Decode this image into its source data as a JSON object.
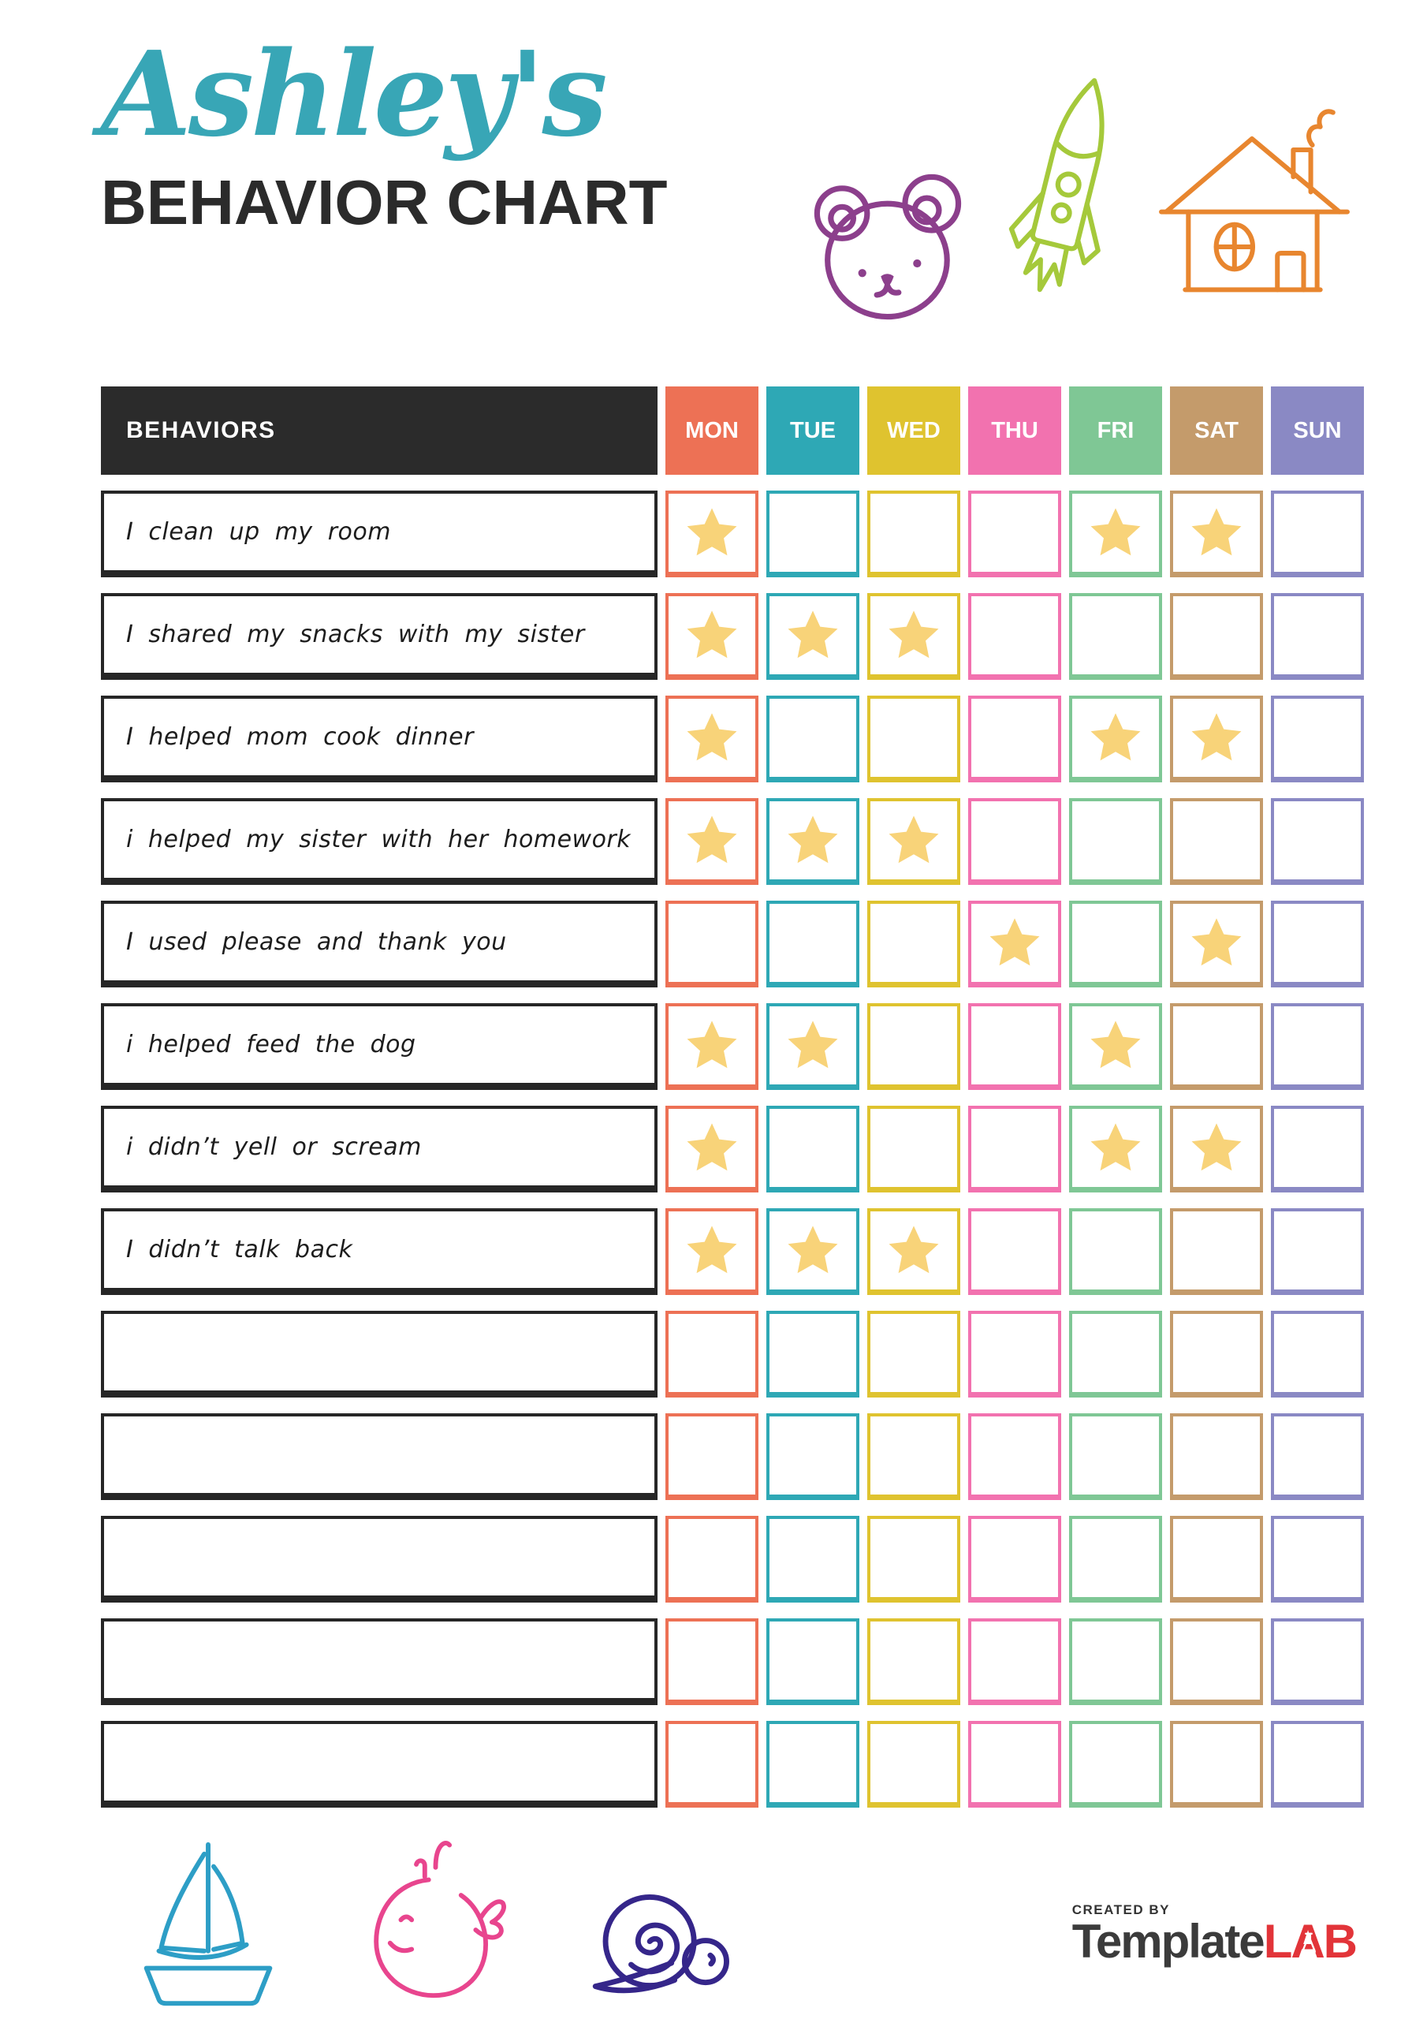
{
  "page": {
    "title_script": "Ashley's",
    "title_main": "BEHAVIOR CHART"
  },
  "colors": {
    "title_accent": "#38A6B6",
    "heading_text": "#2B2B2B",
    "table_border_dark": "#262626",
    "star": "#F8D379",
    "logo_gray": "#3B3B3B",
    "logo_red": "#E23439",
    "doodles": {
      "bear": "#8C3F8C",
      "rocket": "#A5C93B",
      "house": "#E8862F",
      "sailboat": "#2D9EC6",
      "whale": "#E8458E",
      "snail": "#35268A"
    }
  },
  "icons": {
    "top": [
      "bear-icon",
      "rocket-icon",
      "house-icon"
    ],
    "bottom": [
      "sailboat-icon",
      "whale-icon",
      "snail-icon"
    ],
    "cell_marker": "star-icon"
  },
  "chart": {
    "behaviors_label": "BEHAVIORS",
    "days": [
      {
        "label": "MON",
        "color": "#ED7155"
      },
      {
        "label": "TUE",
        "color": "#2EA8B5"
      },
      {
        "label": "WED",
        "color": "#DFC32F"
      },
      {
        "label": "THU",
        "color": "#F272AF"
      },
      {
        "label": "FRI",
        "color": "#7FC795"
      },
      {
        "label": "SAT",
        "color": "#C49B6B"
      },
      {
        "label": "SUN",
        "color": "#8A89C4"
      }
    ],
    "rows": [
      {
        "text": "I clean up my room",
        "stars": [
          0,
          4,
          5
        ]
      },
      {
        "text": "I shared my snacks with my sister",
        "stars": [
          0,
          1,
          2
        ]
      },
      {
        "text": "I helped mom cook dinner",
        "stars": [
          0,
          4,
          5
        ]
      },
      {
        "text": "i helped my sister with her homework",
        "stars": [
          0,
          1,
          2
        ]
      },
      {
        "text": "I used please and thank you",
        "stars": [
          3,
          5
        ]
      },
      {
        "text": "i helped feed the dog",
        "stars": [
          0,
          1,
          4
        ]
      },
      {
        "text": "i didn’t yell or scream",
        "stars": [
          0,
          4,
          5
        ]
      },
      {
        "text": "I didn’t talk back",
        "stars": [
          0,
          1,
          2
        ]
      },
      {
        "text": "",
        "stars": []
      },
      {
        "text": "",
        "stars": []
      },
      {
        "text": "",
        "stars": []
      },
      {
        "text": "",
        "stars": []
      },
      {
        "text": "",
        "stars": []
      }
    ]
  },
  "footer": {
    "created_by": "CREATED BY",
    "logo_template": "Template",
    "logo_lab": "LAB"
  }
}
